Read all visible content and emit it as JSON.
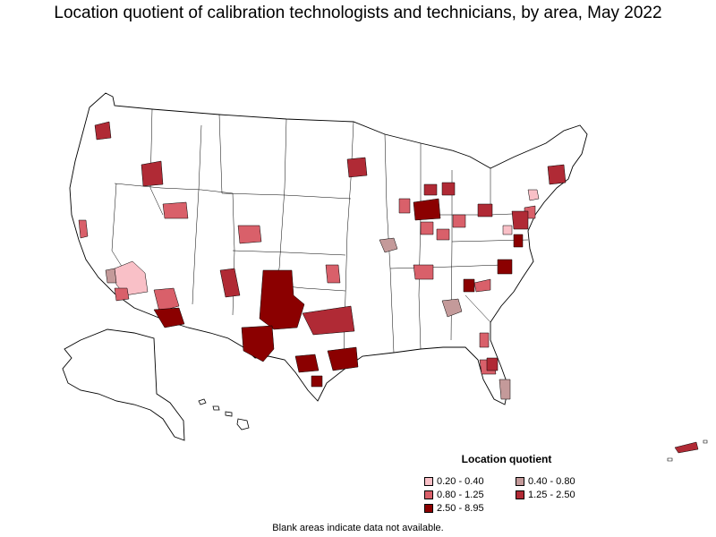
{
  "title": "Location quotient of calibration technologists and technicians, by area, May 2022",
  "legend": {
    "title": "Location quotient",
    "items": [
      {
        "label": "0.20 - 0.40",
        "color": "#f9c0c7"
      },
      {
        "label": "0.40 - 0.80",
        "color": "#c49a9a"
      },
      {
        "label": "0.80 - 1.25",
        "color": "#d9606a"
      },
      {
        "label": "1.25 - 2.50",
        "color": "#b02a35"
      },
      {
        "label": "2.50 - 8.95",
        "color": "#8b0000"
      }
    ]
  },
  "footnote": "Blank areas indicate data not available.",
  "map_style": {
    "border": "#000000",
    "background": "#ffffff"
  }
}
